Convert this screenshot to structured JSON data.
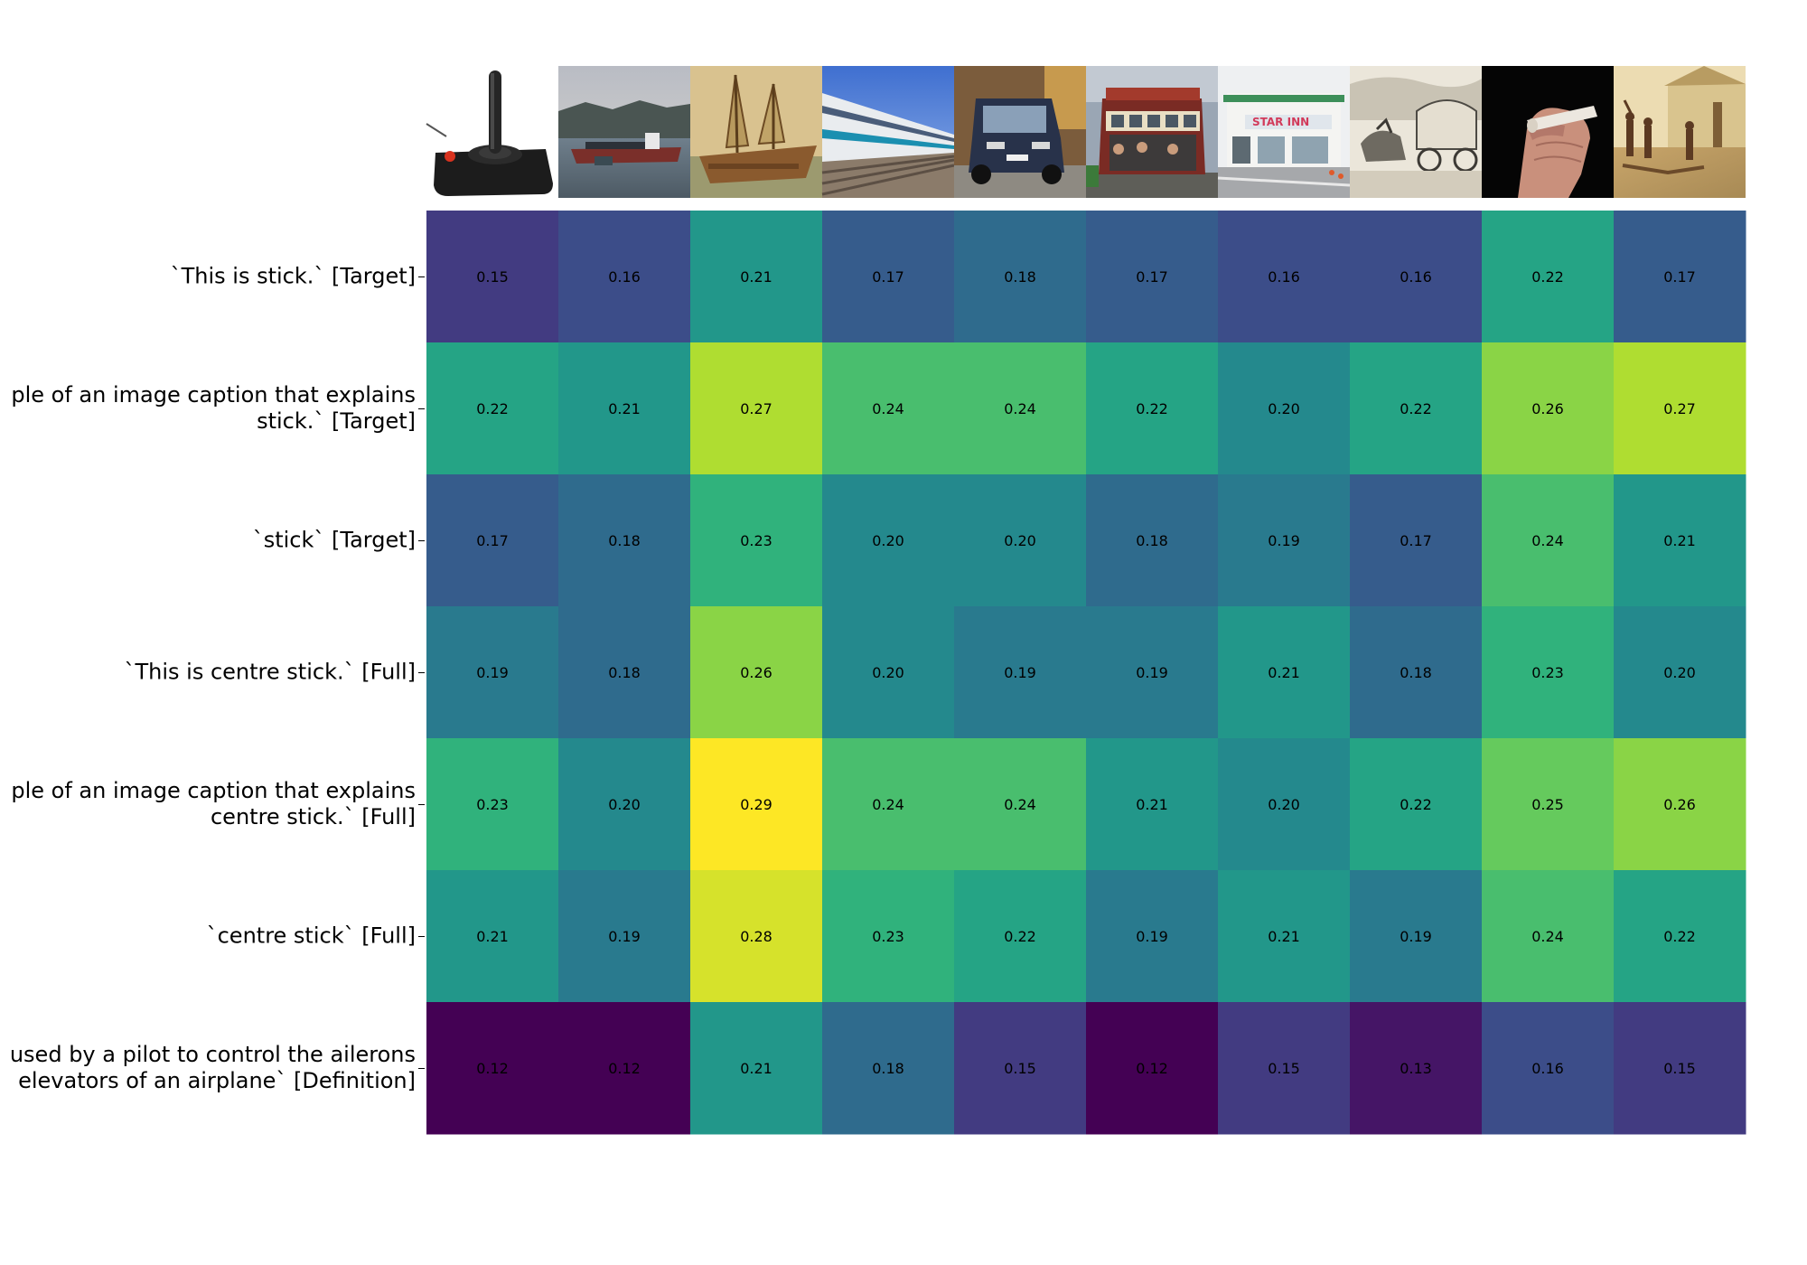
{
  "chart_data": {
    "type": "heatmap",
    "columns": [
      {
        "image": "joystick"
      },
      {
        "image": "cargo ship in bay"
      },
      {
        "image": "painted junk ship"
      },
      {
        "image": "passenger train"
      },
      {
        "image": "vintage car"
      },
      {
        "image": "cable car"
      },
      {
        "image": "Star Inn storefront"
      },
      {
        "image": "covered wagon sketch"
      },
      {
        "image": "hand holding joint"
      },
      {
        "image": "historical painting"
      }
    ],
    "rows": [
      "`This is stick.` [Target]",
      "ple of an image caption that explains\nstick.` [Target]",
      "`stick` [Target]",
      "`This is centre stick.` [Full]",
      "ple of an image caption that explains\ncentre stick.` [Full]",
      "`centre stick` [Full]",
      "used by a pilot to control the ailerons\nelevators of an airplane` [Definition]"
    ],
    "values": [
      [
        0.15,
        0.16,
        0.21,
        0.17,
        0.18,
        0.17,
        0.16,
        0.16,
        0.22,
        0.17
      ],
      [
        0.22,
        0.21,
        0.27,
        0.24,
        0.24,
        0.22,
        0.2,
        0.22,
        0.26,
        0.27
      ],
      [
        0.17,
        0.18,
        0.23,
        0.2,
        0.2,
        0.18,
        0.19,
        0.17,
        0.24,
        0.21
      ],
      [
        0.19,
        0.18,
        0.26,
        0.2,
        0.19,
        0.19,
        0.21,
        0.18,
        0.23,
        0.2
      ],
      [
        0.23,
        0.2,
        0.29,
        0.24,
        0.24,
        0.21,
        0.2,
        0.22,
        0.25,
        0.26
      ],
      [
        0.21,
        0.19,
        0.28,
        0.23,
        0.22,
        0.19,
        0.21,
        0.19,
        0.24,
        0.22
      ],
      [
        0.12,
        0.12,
        0.21,
        0.18,
        0.15,
        0.12,
        0.15,
        0.13,
        0.16,
        0.15
      ]
    ],
    "value_format": "2 decimals",
    "colormap": "viridis",
    "grid": false
  }
}
